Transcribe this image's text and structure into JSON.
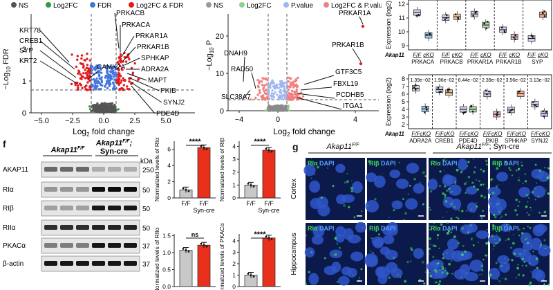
{
  "volcano1": {
    "legend": [
      {
        "label": "NS",
        "color": "#555555"
      },
      {
        "label": "Log2FC",
        "color": "#2e9e3a"
      },
      {
        "label": "FDR",
        "color": "#4477dd"
      },
      {
        "label": "Log2FC & FDR",
        "color": "#e41a1c"
      }
    ],
    "ylabel_main": "−Log",
    "ylabel_sub": "10",
    "ylabel_tail": " FDR",
    "xlabel_main": "Log",
    "xlabel_sub": "2",
    "xlabel_tail": " fold change",
    "xticks": [
      "−5.0",
      "−2.5",
      "0.0",
      "2.5",
      "5.0"
    ],
    "yticks": [
      "0",
      "1",
      "2"
    ],
    "genes_left": [
      "KRT78",
      "CREB1",
      "SYP",
      "KRT2"
    ],
    "gene_center": "CAMK2A",
    "genes_right": [
      "PRKACB",
      "PRKACA",
      "PRKAR1A",
      "PRKAR1B",
      "SPHKAP",
      "ADRA2A",
      "MAPT",
      "PKIB",
      "SYNJ2",
      "PDE4D"
    ]
  },
  "volcano2": {
    "legend": [
      {
        "label": "NS",
        "color": "#9a9a9a"
      },
      {
        "label": "Log2FC",
        "color": "#8fd08f"
      },
      {
        "label": "P.value",
        "color": "#9db7ef"
      },
      {
        "label": "Log2FC & P.value",
        "color": "#f08080"
      }
    ],
    "ylabel_main": "−Log",
    "ylabel_sub": "10",
    "ylabel_tail": " P",
    "xlabel_main": "Log",
    "xlabel_sub": "2",
    "xlabel_tail": " fold change",
    "xticks": [
      "−4",
      "0",
      "4"
    ],
    "yticks": [
      "0",
      "10",
      "20"
    ],
    "genes": [
      "PRKAR1A",
      "PRKAR1B",
      "DNAH9",
      "RAD50",
      "GTF3C5",
      "FBXL19",
      "PCDHB5",
      "ITGA1",
      "SLC38A7"
    ]
  },
  "box_top": {
    "ylabel": "Expression (log2)",
    "yticks": [
      "9",
      "10",
      "11",
      "12"
    ],
    "akap_label": "Akap11",
    "groups": [
      "PRKACA",
      "PRKACB",
      "PRKAR1A",
      "PRKAR1B",
      "SYP"
    ],
    "cond_labels": [
      "F/F",
      "cKO"
    ]
  },
  "box_bottom": {
    "ylabel": "Expression (log2)",
    "yticks": [
      "2",
      "3",
      "4",
      "5",
      "6",
      "7",
      "8"
    ],
    "akap_label": "Akap11",
    "pvalues": [
      "1.39e−02",
      "1.96e−02",
      "6.44e−02",
      "2.39e−02",
      "3.56e−02",
      "3.13e−02"
    ],
    "groups": [
      "ADRA2A",
      "CREB1",
      "PDE4D",
      "PKIB",
      "SPHKAP",
      "SYNJ2"
    ],
    "cond_labels": [
      "F/F",
      "cKO"
    ]
  },
  "panel_f": {
    "letter": "f",
    "col_ff": "Akap11",
    "col_ff_sup": "F/F",
    "col_cko": "Akap11",
    "col_cko_sup": "F/F",
    "col_cko_tail": ";",
    "col_cko_line2": "Syn-cre",
    "kda": "kDa",
    "bands": [
      {
        "name": "AKAP11",
        "markers": [
          "250"
        ]
      },
      {
        "name": "RIα",
        "markers": [
          "50"
        ]
      },
      {
        "name": "RIβ",
        "markers": [
          "50"
        ]
      },
      {
        "name": "RIIα",
        "markers": [
          "50"
        ]
      },
      {
        "name": "PKACα",
        "markers": [
          "37"
        ]
      },
      {
        "name": "β-actin",
        "markers": [
          "37"
        ]
      }
    ]
  },
  "bars": [
    {
      "ylabel": "Normalized levels of RIα",
      "yticks": [
        "0",
        "2",
        "4",
        "6"
      ],
      "sig": "****",
      "cats": [
        "F/F",
        "F/F"
      ],
      "cat2": "Syn-cre",
      "values": [
        1.0,
        6.2
      ],
      "ymax": 7
    },
    {
      "ylabel": "Normalized levels of RIβ",
      "yticks": [
        "0",
        "1",
        "2",
        "3",
        "4"
      ],
      "sig": "****",
      "cats": [
        "F/F",
        "F/F"
      ],
      "cat2": "Syn-cre",
      "values": [
        1.0,
        3.7
      ],
      "ymax": 4.4
    },
    {
      "ylabel": "Normalized levels of RIIα",
      "yticks": [
        "0.0",
        "0.5",
        "1.0",
        "1.5"
      ],
      "sig": "ns",
      "cats": [],
      "cat2": "",
      "values": [
        1.07,
        1.22
      ],
      "ymax": 1.55
    },
    {
      "ylabel": "Normalized levels of PKACα",
      "yticks": [
        "0",
        "1",
        "2",
        "3",
        "4"
      ],
      "sig": "****",
      "cats": [],
      "cat2": "",
      "values": [
        1.0,
        4.25
      ],
      "ymax": 4.6
    }
  ],
  "panel_g": {
    "letter": "g",
    "title_ff": "Akap11",
    "title_ff_sup": "F/F",
    "title_cko": "Akap11",
    "title_cko_sup": "F/F",
    "title_cko_tail": "; Syn-cre",
    "rows": [
      "Cortex",
      "Hippocampus"
    ],
    "cells": [
      {
        "p": "RIα",
        "d": "DAPI"
      },
      {
        "p": "RIβ",
        "d": "DAPI"
      },
      {
        "p": "RIα",
        "d": "DAPI"
      },
      {
        "p": "RIβ",
        "d": "DAPI"
      }
    ]
  },
  "colors": {
    "ff_bar": "#c8c8c8",
    "cko_bar": "#e8301c",
    "micro_bg": "#0b1a4a",
    "nuclei": "#2f56c9",
    "green": "#3fdc5a"
  }
}
